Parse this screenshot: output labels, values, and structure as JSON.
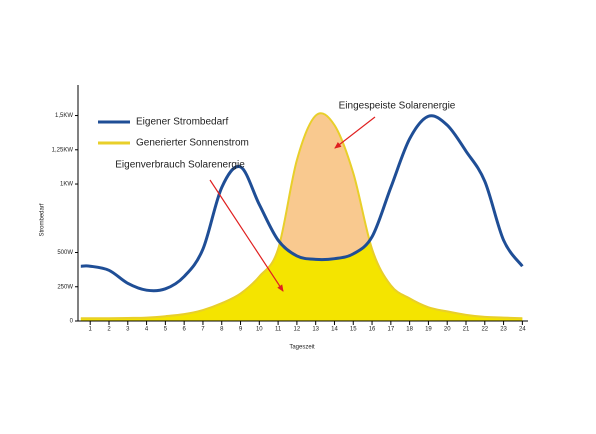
{
  "chart_data": {
    "type": "area",
    "x_label": "Tageszeit",
    "y_label": "Strombedarf",
    "x": [
      0.5,
      1,
      2,
      3,
      4,
      5,
      6,
      7,
      8,
      9,
      10,
      11,
      12,
      13,
      14,
      15,
      16,
      17,
      18,
      19,
      20,
      21,
      22,
      23,
      24
    ],
    "series": [
      {
        "name": "Generierter Sonnenstrom",
        "color": "#f4e400",
        "line_color": "#e8cf2a",
        "values": [
          20,
          20,
          20,
          22,
          25,
          35,
          50,
          80,
          130,
          200,
          325,
          525,
          1175,
          1500,
          1430,
          1080,
          525,
          260,
          165,
          100,
          70,
          45,
          30,
          25,
          20
        ]
      },
      {
        "name": "Eigener Strombedarf",
        "color": "#1f4e96",
        "values": [
          400,
          400,
          370,
          275,
          225,
          235,
          325,
          525,
          975,
          1125,
          850,
          590,
          475,
          450,
          455,
          490,
          615,
          975,
          1330,
          1495,
          1430,
          1240,
          1020,
          590,
          400
        ]
      }
    ],
    "surplus_color": "#f9c98f",
    "xlim": [
      0.35,
      24.3
    ],
    "xticks": [
      1,
      2,
      3,
      4,
      5,
      6,
      7,
      8,
      9,
      10,
      11,
      12,
      13,
      14,
      15,
      16,
      17,
      18,
      19,
      20,
      21,
      22,
      23,
      24
    ],
    "ylim": [
      0,
      1650
    ],
    "yticks": [
      0,
      {
        "value": 250,
        "label": "250W"
      },
      {
        "value": 500,
        "label": "500W"
      },
      {
        "value": 1000,
        "label": "1KW"
      },
      {
        "value": 1250,
        "label": "1,25KW"
      },
      {
        "value": 1500,
        "label": "1,5KW"
      }
    ],
    "annotations": [
      {
        "text": "Eingespeiste Solarenergie",
        "color": "#e02020"
      },
      {
        "text": "Eigenverbrauch Solarenergie",
        "color": "#e02020"
      }
    ]
  }
}
